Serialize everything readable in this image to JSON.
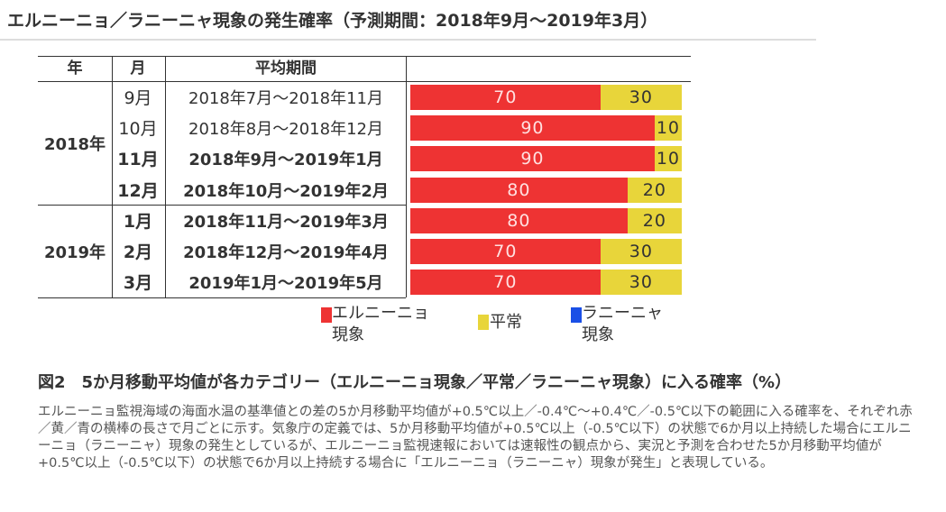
{
  "header": {
    "title": "エルニーニョ／ラニーニャ現象の発生確率（予測期間：2018年9月〜2019年3月）"
  },
  "table": {
    "headers": {
      "year": "年",
      "month": "月",
      "period": "平均期間"
    },
    "years": [
      "2018年",
      "2019年"
    ]
  },
  "colors": {
    "el_nino": "#ee3333",
    "normal": "#e8d53a",
    "la_nina": "#1a4fe6"
  },
  "chart_data": {
    "type": "bar",
    "orientation": "horizontal",
    "stacked": true,
    "categories": [
      {
        "year": "2018年",
        "month": "9月",
        "period": "2018年7月〜2018年11月",
        "bold": false
      },
      {
        "year": "2018年",
        "month": "10月",
        "period": "2018年8月〜2018年12月",
        "bold": false
      },
      {
        "year": "2018年",
        "month": "11月",
        "period": "2018年9月〜2019年1月",
        "bold": true
      },
      {
        "year": "2018年",
        "month": "12月",
        "period": "2018年10月〜2019年2月",
        "bold": true
      },
      {
        "year": "2019年",
        "month": "1月",
        "period": "2018年11月〜2019年3月",
        "bold": true
      },
      {
        "year": "2019年",
        "month": "2月",
        "period": "2018年12月〜2019年4月",
        "bold": true
      },
      {
        "year": "2019年",
        "month": "3月",
        "period": "2019年1月〜2019年5月",
        "bold": true
      }
    ],
    "series": [
      {
        "name": "エルニーニョ現象",
        "color": "#ee3333",
        "values": [
          70,
          90,
          90,
          80,
          80,
          70,
          70
        ]
      },
      {
        "name": "平常",
        "color": "#e8d53a",
        "values": [
          30,
          10,
          10,
          20,
          20,
          30,
          30
        ]
      },
      {
        "name": "ラニーニャ現象",
        "color": "#1a4fe6",
        "values": [
          0,
          0,
          0,
          0,
          0,
          0,
          0
        ]
      }
    ],
    "xlim": [
      0,
      100
    ],
    "legend": {
      "items": [
        {
          "label": "エルニーニョ\n現象",
          "color": "#ee3333"
        },
        {
          "label": "平常",
          "color": "#e8d53a"
        },
        {
          "label": "ラニーニャ\n現象",
          "color": "#1a4fe6"
        }
      ]
    }
  },
  "caption": {
    "figure": "図2　5か月移動平均値が各カテゴリー（エルニーニョ現象／平常／ラニーニャ現象）に入る確率（%）",
    "description": "エルニーニョ監視海域の海面水温の基準値との差の5か月移動平均値が+0.5℃以上／-0.4℃〜+0.4℃／-0.5℃以下の範囲に入る確率を、それぞれ赤／黄／青の横棒の長さで月ごとに示す。気象庁の定義では、5か月移動平均値が+0.5℃以上（-0.5℃以下）の状態で6か月以上持続した場合にエルニーニョ（ラニーニャ）現象の発生としているが、エルニーニョ監視速報においては速報性の観点から、実況と予測を合わせた5か月移動平均値が+0.5℃以上（-0.5℃以下）の状態で6か月以上持続する場合に「エルニーニョ（ラニーニャ）現象が発生」と表現している。"
  }
}
